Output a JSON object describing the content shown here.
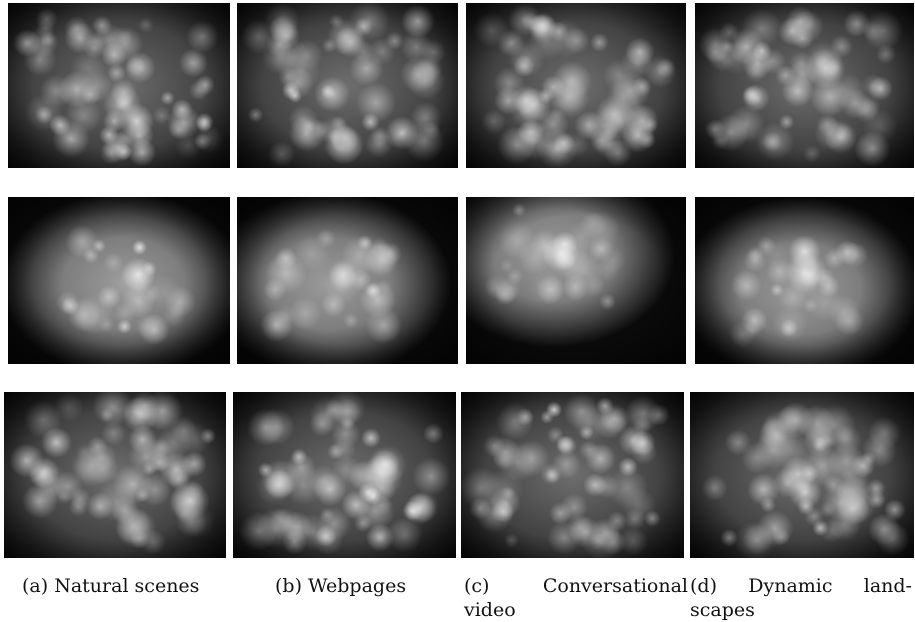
{
  "figure": {
    "captions": [
      {
        "label": "(a)",
        "text": "Natural scenes"
      },
      {
        "label": "(b)",
        "text": "Webpages"
      },
      {
        "label": "(c)",
        "text": "Conversational",
        "text2": "video"
      },
      {
        "label": "(d)",
        "text": "Dynamic",
        "text_end": "land-",
        "text2": "scapes"
      }
    ],
    "rows": [
      {
        "label": "row-1",
        "tiles": [
          "natural-scenes",
          "webpages",
          "conversational-video",
          "dynamic-landscapes"
        ]
      },
      {
        "label": "row-2",
        "tiles": [
          "natural-scenes",
          "webpages",
          "conversational-video",
          "dynamic-landscapes"
        ]
      },
      {
        "label": "row-3",
        "tiles": [
          "natural-scenes",
          "webpages",
          "conversational-video",
          "dynamic-landscapes"
        ]
      }
    ]
  }
}
